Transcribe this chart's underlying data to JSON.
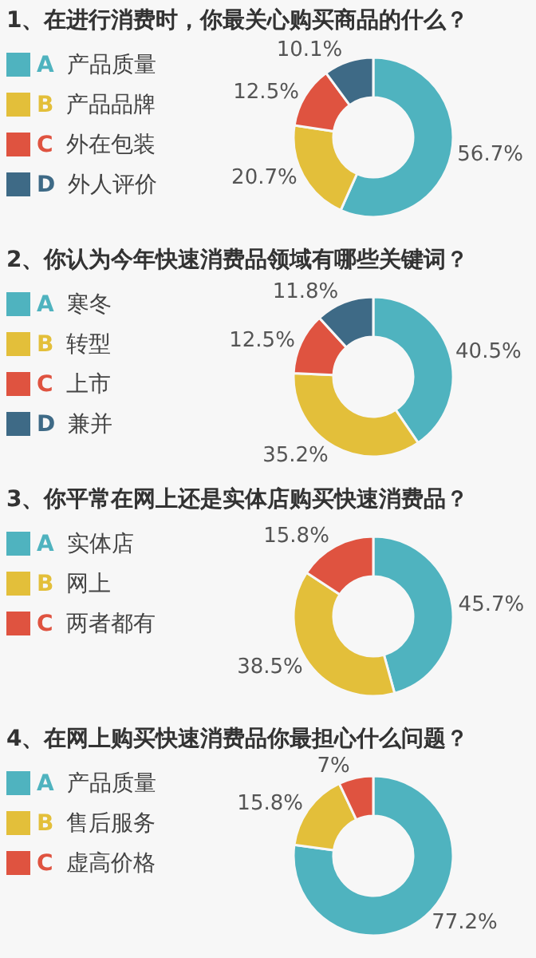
{
  "chart_data": [
    {
      "type": "donut",
      "title": "1、在进行消费时，你最关心购买商品的什么？",
      "categories": [
        "A 产品质量",
        "B 产品品牌",
        "C 外在包装",
        "D 外人评价"
      ],
      "values": [
        56.7,
        20.7,
        12.5,
        10.1
      ],
      "colors": [
        "#4fb3bf",
        "#e3bf3a",
        "#df5340",
        "#3e6a86"
      ],
      "value_labels": [
        "56.7%",
        "20.7%",
        "12.5%",
        "10.1%"
      ],
      "legend": "left"
    },
    {
      "type": "donut",
      "title": "2、你认为今年快速消费品领域有哪些关键词？",
      "categories": [
        "A 寒冬",
        "B 转型",
        "C 上市",
        "D 兼并"
      ],
      "values": [
        40.5,
        35.2,
        12.5,
        11.8
      ],
      "colors": [
        "#4fb3bf",
        "#e3bf3a",
        "#df5340",
        "#3e6a86"
      ],
      "value_labels": [
        "40.5%",
        "35.2%",
        "12.5%",
        "11.8%"
      ],
      "legend": "left"
    },
    {
      "type": "donut",
      "title": "3、你平常在网上还是实体店购买快速消费品？",
      "categories": [
        "A 实体店",
        "B 网上",
        "C 两者都有"
      ],
      "values": [
        45.7,
        38.5,
        15.8
      ],
      "colors": [
        "#4fb3bf",
        "#e3bf3a",
        "#df5340"
      ],
      "value_labels": [
        "45.7%",
        "38.5%",
        "15.8%"
      ],
      "legend": "left"
    },
    {
      "type": "donut",
      "title": "4、在网上购买快速消费品你最担心什么问题？",
      "categories": [
        "A 产品质量",
        "B 售后服务",
        "C 虚高价格"
      ],
      "values": [
        77.2,
        15.8,
        7
      ],
      "colors": [
        "#4fb3bf",
        "#e3bf3a",
        "#df5340"
      ],
      "value_labels": [
        "77.2%",
        "15.8%",
        "7%"
      ],
      "legend": "left"
    }
  ]
}
